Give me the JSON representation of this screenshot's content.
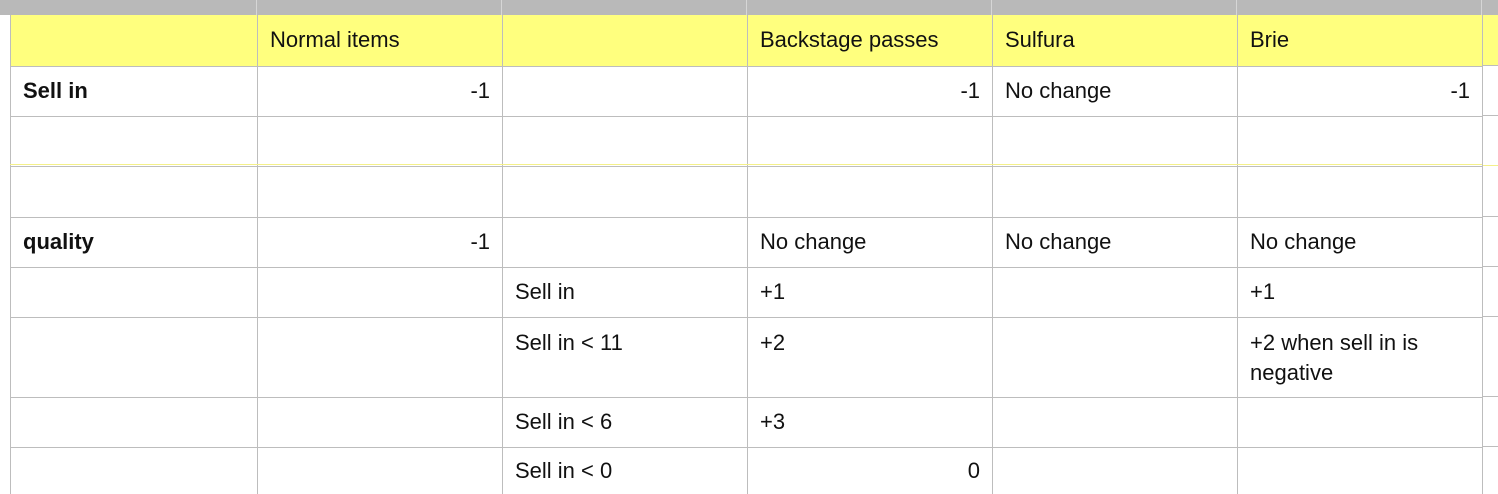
{
  "header": {
    "c1": "",
    "c2": "Normal items",
    "c3": "",
    "c4": "Backstage passes",
    "c5": "Sulfura",
    "c6": "Brie"
  },
  "rows": [
    {
      "c1": "Sell in",
      "c2": "-1",
      "c3": "",
      "c4": "-1",
      "c5": "No change",
      "c6": "-1"
    },
    {
      "c1": "",
      "c2": "",
      "c3": "",
      "c4": "",
      "c5": "",
      "c6": ""
    },
    {
      "c1": "",
      "c2": "",
      "c3": "",
      "c4": "",
      "c5": "",
      "c6": ""
    },
    {
      "c1": "quality",
      "c2": "-1",
      "c3": "",
      "c4": "No change",
      "c5": "No change",
      "c6": "No change"
    },
    {
      "c1": "",
      "c2": "",
      "c3": "Sell in",
      "c4": "+1",
      "c5": "",
      "c6": "+1"
    },
    {
      "c1": "",
      "c2": "",
      "c3": "Sell in < 11",
      "c4": "+2",
      "c5": "",
      "c6": "+2 when sell in is negative"
    },
    {
      "c1": "",
      "c2": "",
      "c3": "Sell in < 6",
      "c4": "+3",
      "c5": "",
      "c6": ""
    },
    {
      "c1": "",
      "c2": "",
      "c3": "Sell in < 0",
      "c4": "0",
      "c5": "",
      "c6": ""
    }
  ],
  "colors": {
    "header_fill": "#ffff7e",
    "grid_line": "#bdbdbd",
    "top_bar": "#b9b9b9"
  }
}
